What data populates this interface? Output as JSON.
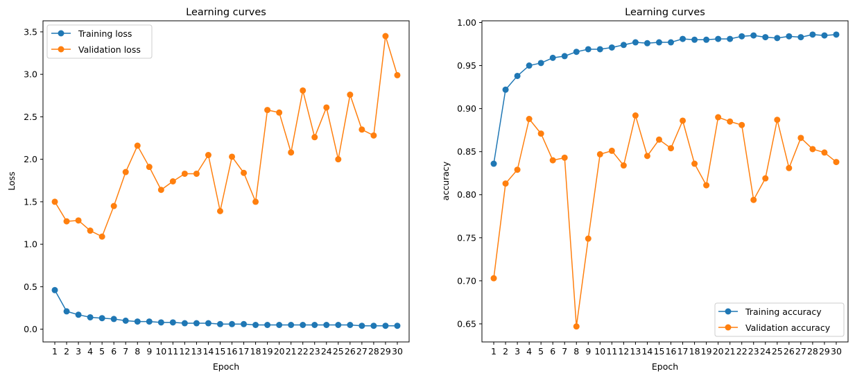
{
  "chart_data": [
    {
      "type": "line",
      "title": "Learning curves",
      "xlabel": "Epoch",
      "ylabel": "Loss",
      "x": [
        1,
        2,
        3,
        4,
        5,
        6,
        7,
        8,
        9,
        10,
        11,
        12,
        13,
        14,
        15,
        16,
        17,
        18,
        19,
        20,
        21,
        22,
        23,
        24,
        25,
        26,
        27,
        28,
        29,
        30
      ],
      "xlim": [
        0,
        31
      ],
      "ylim": [
        -0.15,
        3.63
      ],
      "yticks": [
        0.0,
        0.5,
        1.0,
        1.5,
        2.0,
        2.5,
        3.0,
        3.5
      ],
      "ytick_labels": [
        "0.0",
        "0.5",
        "1.0",
        "1.5",
        "2.0",
        "2.5",
        "3.0",
        "3.5"
      ],
      "grid": false,
      "legend_position": "top-left",
      "series": [
        {
          "name": "Training loss",
          "color": "#1f77b4",
          "marker": "circle",
          "values": [
            0.46,
            0.21,
            0.17,
            0.14,
            0.13,
            0.12,
            0.1,
            0.09,
            0.09,
            0.08,
            0.08,
            0.07,
            0.07,
            0.07,
            0.06,
            0.06,
            0.06,
            0.05,
            0.05,
            0.05,
            0.05,
            0.05,
            0.05,
            0.05,
            0.05,
            0.05,
            0.04,
            0.04,
            0.04,
            0.04
          ]
        },
        {
          "name": "Validation loss",
          "color": "#ff7f0e",
          "marker": "circle",
          "values": [
            1.5,
            1.27,
            1.28,
            1.16,
            1.09,
            1.45,
            1.85,
            2.16,
            1.91,
            1.64,
            1.74,
            1.83,
            1.83,
            2.05,
            1.39,
            2.03,
            1.84,
            1.5,
            2.58,
            2.55,
            2.08,
            2.81,
            2.26,
            2.61,
            2.0,
            2.76,
            2.35,
            2.28,
            3.45,
            2.99
          ]
        }
      ]
    },
    {
      "type": "line",
      "title": "Learning curves",
      "xlabel": "Epoch",
      "ylabel": "accuracy",
      "x": [
        1,
        2,
        3,
        4,
        5,
        6,
        7,
        8,
        9,
        10,
        11,
        12,
        13,
        14,
        15,
        16,
        17,
        18,
        19,
        20,
        21,
        22,
        23,
        24,
        25,
        26,
        27,
        28,
        29,
        30
      ],
      "xlim": [
        0,
        31
      ],
      "ylim": [
        0.629,
        1.002
      ],
      "yticks": [
        0.65,
        0.7,
        0.75,
        0.8,
        0.85,
        0.9,
        0.95,
        1.0
      ],
      "ytick_labels": [
        "0.65",
        "0.70",
        "0.75",
        "0.80",
        "0.85",
        "0.90",
        "0.95",
        "1.00"
      ],
      "grid": false,
      "legend_position": "bottom-right",
      "series": [
        {
          "name": "Training accuracy",
          "color": "#1f77b4",
          "marker": "circle",
          "values": [
            0.836,
            0.922,
            0.938,
            0.95,
            0.953,
            0.959,
            0.961,
            0.966,
            0.969,
            0.969,
            0.971,
            0.974,
            0.977,
            0.976,
            0.977,
            0.977,
            0.981,
            0.98,
            0.98,
            0.981,
            0.981,
            0.984,
            0.985,
            0.983,
            0.982,
            0.984,
            0.983,
            0.986,
            0.985,
            0.986
          ]
        },
        {
          "name": "Validation accuracy",
          "color": "#ff7f0e",
          "marker": "circle",
          "values": [
            0.703,
            0.813,
            0.829,
            0.888,
            0.871,
            0.84,
            0.843,
            0.647,
            0.749,
            0.847,
            0.851,
            0.834,
            0.892,
            0.845,
            0.864,
            0.854,
            0.886,
            0.836,
            0.811,
            0.89,
            0.885,
            0.881,
            0.794,
            0.819,
            0.887,
            0.831,
            0.866,
            0.853,
            0.849,
            0.838
          ]
        }
      ]
    }
  ]
}
